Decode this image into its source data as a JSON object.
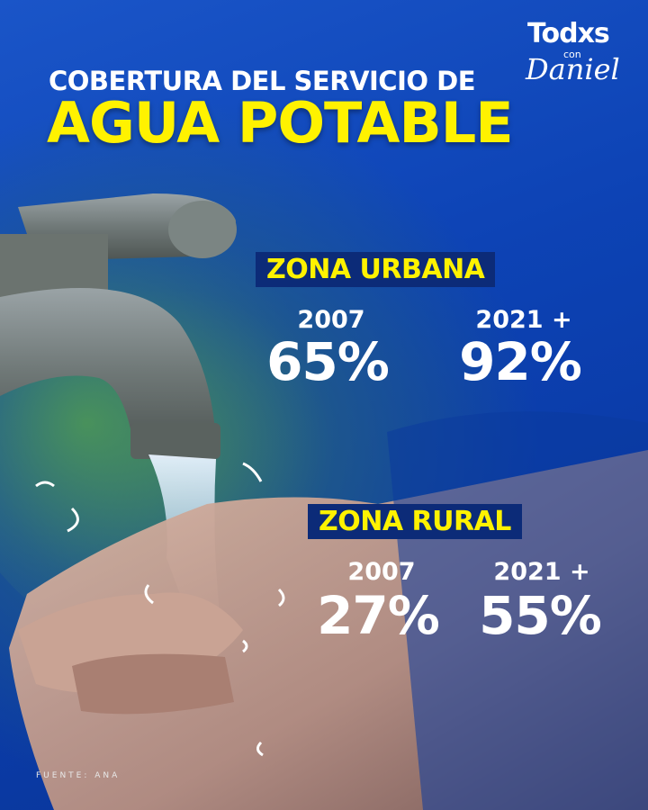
{
  "logo": {
    "line1": "Todxs",
    "line2": "con",
    "line3": "Daniel"
  },
  "title": {
    "line1": "COBERTURA DEL SERVICIO DE",
    "line2": "AGUA POTABLE"
  },
  "zones": [
    {
      "label": "ZONA URBANA",
      "stats": [
        {
          "year": "2007",
          "value": "65%"
        },
        {
          "year": "2021 +",
          "value": "92%"
        }
      ]
    },
    {
      "label": "ZONA RURAL",
      "stats": [
        {
          "year": "2007",
          "value": "27%"
        },
        {
          "year": "2021 +",
          "value": "55%"
        }
      ]
    }
  ],
  "source": "FUENTE: ANA",
  "colors": {
    "background": "#0d43b5",
    "accent_yellow": "#fff200",
    "label_box": "#0c2b78",
    "text": "#ffffff"
  }
}
